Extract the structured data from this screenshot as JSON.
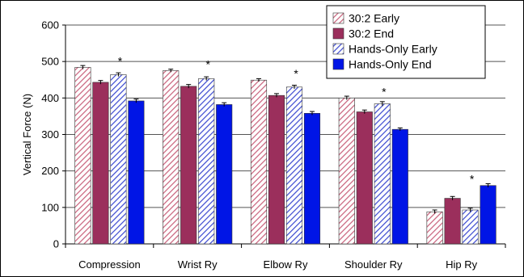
{
  "chart_data": {
    "type": "bar",
    "title": "",
    "xlabel": "",
    "ylabel": "Vertical Force (N)",
    "ylim": [
      0,
      600
    ],
    "yticks": [
      0,
      100,
      200,
      300,
      400,
      500,
      600
    ],
    "grid": true,
    "legend_position": "top-right",
    "categories": [
      "Compression",
      "Wrist Ry",
      "Elbow Ry",
      "Shoulder Ry",
      "Hip Ry"
    ],
    "series": [
      {
        "name": "30:2 Early",
        "values": [
          484,
          475,
          449,
          400,
          88
        ],
        "errors": [
          5,
          4,
          4,
          5,
          5
        ],
        "color": "#c8607a",
        "fill": "hatch"
      },
      {
        "name": "30:2 End",
        "values": [
          443,
          432,
          407,
          362,
          125
        ],
        "errors": [
          5,
          5,
          5,
          5,
          5
        ],
        "color": "#9b2f5c",
        "fill": "solid"
      },
      {
        "name": "Hands-Only Early",
        "values": [
          464,
          453,
          430,
          384,
          93
        ],
        "errors": [
          5,
          5,
          5,
          6,
          5
        ],
        "color": "#3a48d0",
        "fill": "hatch"
      },
      {
        "name": "Hands-Only End",
        "values": [
          392,
          382,
          358,
          314,
          160
        ],
        "errors": [
          5,
          5,
          5,
          4,
          5
        ],
        "color": "#0015e6",
        "fill": "solid"
      }
    ],
    "annotations": [
      "*",
      "*",
      "*",
      "*",
      "*"
    ]
  }
}
